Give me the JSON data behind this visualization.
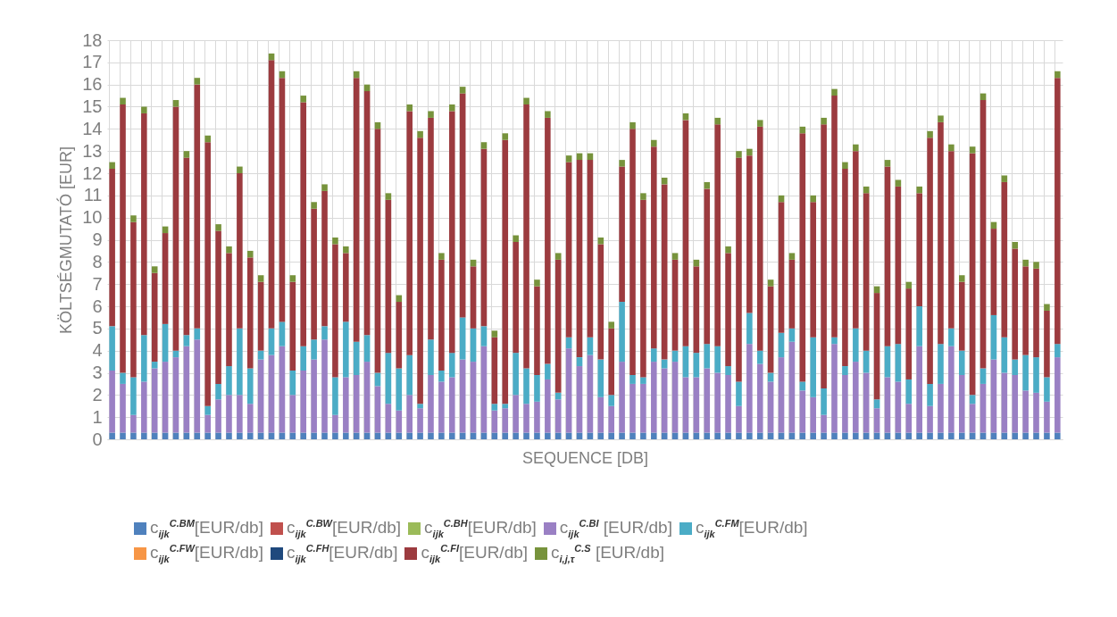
{
  "chart_data": {
    "type": "bar",
    "stacked": true,
    "xlabel": "SEQUENCE [DB]",
    "ylabel": "KÖLTSÉGMUTATÓ [EUR]",
    "categories": [
      null,
      null,
      null,
      null,
      null,
      null,
      null,
      null,
      null,
      null,
      null,
      null,
      null,
      null,
      null,
      null,
      null,
      null,
      null,
      null,
      null,
      null,
      null,
      null,
      null,
      null,
      null,
      null,
      null,
      null,
      null,
      null,
      null,
      null,
      null,
      null,
      null,
      null,
      null,
      null,
      null,
      null,
      null,
      null,
      null,
      null,
      null,
      null,
      null,
      null,
      null,
      null,
      null,
      null,
      null,
      null,
      null,
      null,
      null,
      null,
      null,
      null,
      null,
      null,
      null,
      null,
      null,
      null,
      null,
      null,
      null,
      null,
      null,
      null,
      null,
      null,
      null,
      null,
      null,
      null,
      null,
      null,
      null,
      null,
      null,
      null,
      null,
      null,
      null,
      null
    ],
    "ylim": [
      0,
      18
    ],
    "yticks": [
      0,
      1,
      2,
      3,
      4,
      5,
      6,
      7,
      8,
      9,
      10,
      11,
      12,
      13,
      14,
      15,
      16,
      17,
      18
    ],
    "grid": true,
    "legend": "bottom",
    "series": [
      {
        "name": "c$_{ijk}$$^{C.BM}$[EUR/db]",
        "color": "#4f81bd",
        "values": [
          0.3,
          0.3,
          0.3,
          0.3,
          0.3,
          0.3,
          0.3,
          0.3,
          0.3,
          0.3,
          0.3,
          0.3,
          0.3,
          0.3,
          0.3,
          0.3,
          0.3,
          0.3,
          0.3,
          0.3,
          0.3,
          0.3,
          0.3,
          0.3,
          0.3,
          0.3,
          0.3,
          0.3,
          0.3,
          0.3,
          0.3,
          0.3,
          0.3,
          0.3,
          0.3,
          0.3,
          0.3,
          0.3,
          0.3,
          0.3,
          0.3,
          0.3,
          0.3,
          0.3,
          0.3,
          0.3,
          0.3,
          0.3,
          0.3,
          0.3,
          0.3,
          0.3,
          0.3,
          0.3,
          0.3,
          0.3,
          0.3,
          0.3,
          0.3,
          0.3,
          0.3,
          0.3,
          0.3,
          0.3,
          0.3,
          0.3,
          0.3,
          0.3,
          0.3,
          0.3,
          0.3,
          0.3,
          0.3,
          0.3,
          0.3,
          0.3,
          0.3,
          0.3,
          0.3,
          0.3,
          0.3,
          0.3,
          0.3,
          0.3,
          0.3,
          0.3,
          0.3,
          0.3,
          0.3,
          0.3
        ]
      },
      {
        "name": "c$_{ijk}$$^{C.BW}$[EUR/db]",
        "color": "#c0504d",
        "values": [
          0,
          0,
          0,
          0,
          0,
          0,
          0,
          0,
          0,
          0,
          0,
          0,
          0,
          0,
          0,
          0,
          0,
          0,
          0,
          0,
          0,
          0,
          0,
          0,
          0,
          0,
          0,
          0,
          0,
          0,
          0,
          0,
          0,
          0,
          0,
          0,
          0,
          0,
          0,
          0,
          0,
          0,
          0,
          0,
          0,
          0,
          0,
          0,
          0,
          0,
          0,
          0,
          0,
          0,
          0,
          0,
          0,
          0,
          0,
          0,
          0,
          0,
          0,
          0,
          0,
          0,
          0,
          0,
          0,
          0,
          0,
          0,
          0,
          0,
          0,
          0,
          0,
          0,
          0,
          0,
          0,
          0,
          0,
          0,
          0,
          0,
          0,
          0,
          0,
          0
        ]
      },
      {
        "name": "c$_{ijk}$$^{C.BH}$[EUR/db]",
        "color": "#9bbb59",
        "values": [
          0,
          0,
          0,
          0,
          0,
          0,
          0,
          0,
          0,
          0,
          0,
          0,
          0,
          0,
          0,
          0,
          0,
          0,
          0,
          0,
          0,
          0,
          0,
          0,
          0,
          0,
          0,
          0,
          0,
          0,
          0,
          0,
          0,
          0,
          0,
          0,
          0,
          0,
          0,
          0,
          0,
          0,
          0,
          0,
          0,
          0,
          0,
          0,
          0,
          0,
          0,
          0,
          0,
          0,
          0,
          0,
          0,
          0,
          0,
          0,
          0,
          0,
          0,
          0,
          0,
          0,
          0,
          0,
          0,
          0,
          0,
          0,
          0,
          0,
          0,
          0,
          0,
          0,
          0,
          0,
          0,
          0,
          0,
          0,
          0,
          0,
          0,
          0,
          0,
          0
        ]
      },
      {
        "name": "c$_{ijk}$$^{C.BI}$ [EUR/db]",
        "color": "#9a80c4",
        "values": [
          2.8,
          2.2,
          0.8,
          2.3,
          2.9,
          3.2,
          3.4,
          3.9,
          4.2,
          0.8,
          1.5,
          1.7,
          1.7,
          1.3,
          3.3,
          3.5,
          3.9,
          1.7,
          2.8,
          3.3,
          4.2,
          0.8,
          2.5,
          2.6,
          3.2,
          2.1,
          1.3,
          1.0,
          1.7,
          1.1,
          2.6,
          2.3,
          2.5,
          3.3,
          3.2,
          3.9,
          1.0,
          1.1,
          1.7,
          1.3,
          1.4,
          2.4,
          1.5,
          3.8,
          3.0,
          3.5,
          1.6,
          1.2,
          3.2,
          2.2,
          2.2,
          3.2,
          2.9,
          3.2,
          2.5,
          2.5,
          2.9,
          2.7,
          2.6,
          1.2,
          4.0,
          3.1,
          2.3,
          3.4,
          4.1,
          1.9,
          1.6,
          0.8,
          4.0,
          2.6,
          3.2,
          2.7,
          1.1,
          2.5,
          2.3,
          1.3,
          3.9,
          1.2,
          2.2,
          3.9,
          2.6,
          1.3,
          2.2,
          3.3,
          2.7,
          2.6,
          1.9,
          1.8,
          1.4,
          3.4
        ]
      },
      {
        "name": "c$_{ijk}$$^{C.FM}$[EUR/db]",
        "color": "#4bacc6",
        "values": [
          2.0,
          0.5,
          1.7,
          2.1,
          0.3,
          1.7,
          0.3,
          0.5,
          0.5,
          0.4,
          0.7,
          1.3,
          3.0,
          1.6,
          0.4,
          1.2,
          1.1,
          1.1,
          1.1,
          0.9,
          0.6,
          1.7,
          2.5,
          1.5,
          1.2,
          0.6,
          2.3,
          1.9,
          1.8,
          0.2,
          1.6,
          0.5,
          1.1,
          1.9,
          1.5,
          0.9,
          0.3,
          0.2,
          1.9,
          1.6,
          1.2,
          0.7,
          0.3,
          0.5,
          0.4,
          0.8,
          1.7,
          0.5,
          2.7,
          0.4,
          0.3,
          0.6,
          0.4,
          0.5,
          1.4,
          1.1,
          1.1,
          1.2,
          0.4,
          1.1,
          1.4,
          0.6,
          0.4,
          1.1,
          0.6,
          0.4,
          2.7,
          1.2,
          0.3,
          0.4,
          1.5,
          1.0,
          0.4,
          1.4,
          1.7,
          1.1,
          1.8,
          1.0,
          1.8,
          0.8,
          1.1,
          0.4,
          0.7,
          2.0,
          1.6,
          0.7,
          1.6,
          1.6,
          1.1,
          0.6
        ]
      },
      {
        "name": "c$_{ijk}$$^{C.FW}$[EUR/db]",
        "color": "#f79646",
        "values": [
          0,
          0,
          0,
          0,
          0,
          0,
          0,
          0,
          0,
          0,
          0,
          0,
          0,
          0,
          0,
          0,
          0,
          0,
          0,
          0,
          0,
          0,
          0,
          0,
          0,
          0,
          0,
          0,
          0,
          0,
          0,
          0,
          0,
          0,
          0,
          0,
          0,
          0,
          0,
          0,
          0,
          0,
          0,
          0,
          0,
          0,
          0,
          0,
          0,
          0,
          0,
          0,
          0,
          0,
          0,
          0,
          0,
          0,
          0,
          0,
          0,
          0,
          0,
          0,
          0,
          0,
          0,
          0,
          0,
          0,
          0,
          0,
          0,
          0,
          0,
          0,
          0,
          0,
          0,
          0,
          0,
          0,
          0,
          0,
          0,
          0,
          0,
          0,
          0,
          0
        ]
      },
      {
        "name": "c$_{ijk}$$^{C.FH}$[EUR/db]",
        "color": "#1f497d",
        "values": [
          0,
          0,
          0,
          0,
          0,
          0,
          0,
          0,
          0,
          0,
          0,
          0,
          0,
          0,
          0,
          0,
          0,
          0,
          0,
          0,
          0,
          0,
          0,
          0,
          0,
          0,
          0,
          0,
          0,
          0,
          0,
          0,
          0,
          0,
          0,
          0,
          0,
          0,
          0,
          0,
          0,
          0,
          0,
          0,
          0,
          0,
          0,
          0,
          0,
          0,
          0,
          0,
          0,
          0,
          0,
          0,
          0,
          0,
          0,
          0,
          0,
          0,
          0,
          0,
          0,
          0,
          0,
          0,
          0,
          0,
          0,
          0,
          0,
          0,
          0,
          0,
          0,
          0,
          0,
          0,
          0,
          0,
          0,
          0,
          0,
          0,
          0,
          0,
          0,
          0
        ]
      },
      {
        "name": "c$_{ijk}$$^{C.FI}$[EUR/db]",
        "color": "#9c3b3f",
        "values": [
          7.1,
          12.1,
          7.0,
          10.0,
          4.0,
          4.1,
          11.0,
          8.0,
          11.0,
          11.9,
          6.9,
          5.1,
          7.0,
          5.0,
          3.1,
          12.1,
          11.0,
          4.0,
          11.0,
          5.9,
          6.1,
          6.0,
          3.1,
          11.9,
          11.0,
          11.0,
          6.9,
          3.0,
          11.0,
          12.0,
          10.0,
          5.0,
          10.9,
          10.1,
          2.8,
          8.0,
          3.0,
          11.9,
          5.0,
          11.9,
          4.0,
          11.1,
          6.0,
          7.9,
          8.9,
          8.0,
          5.2,
          3.0,
          6.1,
          11.1,
          8.0,
          9.1,
          7.9,
          4.1,
          10.2,
          3.9,
          7.0,
          10.0,
          5.1,
          10.1,
          7.1,
          10.1,
          3.9,
          5.9,
          3.1,
          11.2,
          6.1,
          11.9,
          10.9,
          8.9,
          8.0,
          7.1,
          4.8,
          8.1,
          7.1,
          4.1,
          5.1,
          11.1,
          10.0,
          8.0,
          3.1,
          10.9,
          12.1,
          3.9,
          7.0,
          5.0,
          4.0,
          4.0,
          3.0,
          12.0
        ]
      },
      {
        "name": "c$_{i,j,τ}$$^{C.S}$ [EUR/db]",
        "color": "#77933c",
        "values": [
          0.3,
          0.3,
          0.3,
          0.3,
          0.3,
          0.3,
          0.3,
          0.3,
          0.3,
          0.3,
          0.3,
          0.3,
          0.3,
          0.3,
          0.3,
          0.3,
          0.3,
          0.3,
          0.3,
          0.3,
          0.3,
          0.3,
          0.3,
          0.3,
          0.3,
          0.3,
          0.3,
          0.3,
          0.3,
          0.3,
          0.3,
          0.3,
          0.3,
          0.3,
          0.3,
          0.3,
          0.3,
          0.3,
          0.3,
          0.3,
          0.3,
          0.3,
          0.3,
          0.3,
          0.3,
          0.3,
          0.3,
          0.3,
          0.3,
          0.3,
          0.3,
          0.3,
          0.3,
          0.3,
          0.3,
          0.3,
          0.3,
          0.3,
          0.3,
          0.3,
          0.3,
          0.3,
          0.3,
          0.3,
          0.3,
          0.3,
          0.3,
          0.3,
          0.3,
          0.3,
          0.3,
          0.3,
          0.3,
          0.3,
          0.3,
          0.3,
          0.3,
          0.3,
          0.3,
          0.3,
          0.3,
          0.3,
          0.3,
          0.3,
          0.3,
          0.3,
          0.3,
          0.3,
          0.3,
          0.3
        ]
      }
    ]
  }
}
